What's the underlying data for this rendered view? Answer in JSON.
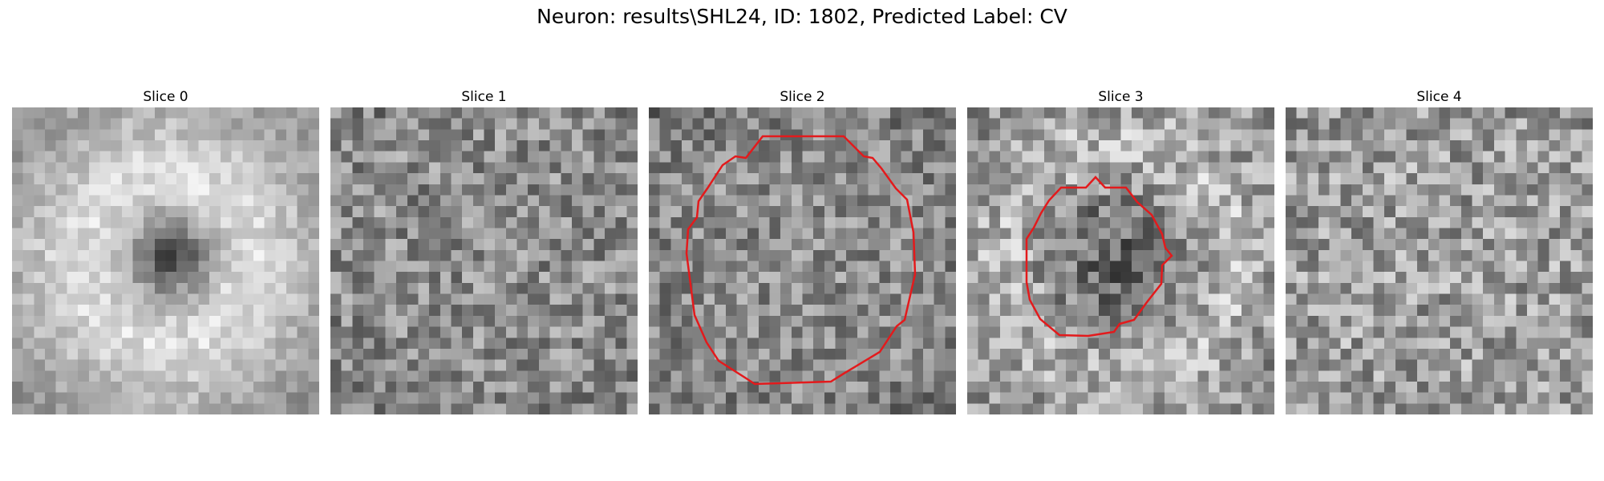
{
  "figure": {
    "title": "Neuron: results\\SHL24, ID: 1802, Predicted Label: CV"
  },
  "panels": [
    {
      "title": "Slice 0",
      "pattern": "bright-ring-dark-center",
      "contour": false
    },
    {
      "title": "Slice 1",
      "pattern": "noise",
      "contour": false
    },
    {
      "title": "Slice 2",
      "pattern": "noise-dark-edges",
      "contour": true
    },
    {
      "title": "Slice 3",
      "pattern": "bright-ring-dark-center-noisy",
      "contour": true
    },
    {
      "title": "Slice 4",
      "pattern": "noise-bright",
      "contour": false
    }
  ],
  "style": {
    "contour_color": "#e31a1c",
    "colormap": "gray"
  }
}
